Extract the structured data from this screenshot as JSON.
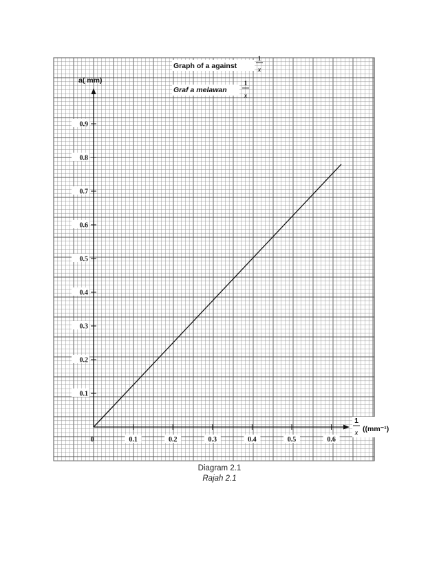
{
  "chart_data": {
    "type": "line",
    "title_line1": "Graph of a against",
    "title_line2": "Graf a melawan",
    "title_fraction_numerator": "1",
    "title_fraction_denominator": "x",
    "ylabel": "a( mm)",
    "xlabel_numerator": "1",
    "xlabel_denominator": "x",
    "xlabel_unit": "((mm⁻¹)",
    "origin_label": "0",
    "xlim": [
      0,
      0.6
    ],
    "ylim": [
      0,
      0.9
    ],
    "x_ticks": [
      "0.1",
      "0.2",
      "0.3",
      "0.4",
      "0.5",
      "0.6"
    ],
    "y_ticks": [
      "0.1",
      "0.2",
      "0.3",
      "0.4",
      "0.5",
      "0.6",
      "0.7",
      "0.8",
      "0.9"
    ],
    "grid": true,
    "series": [
      {
        "x": [
          0,
          0.625
        ],
        "y": [
          0,
          0.78
        ]
      }
    ]
  },
  "caption": {
    "line1": "Diagram 2.1",
    "line2": "Rajah 2.1"
  }
}
